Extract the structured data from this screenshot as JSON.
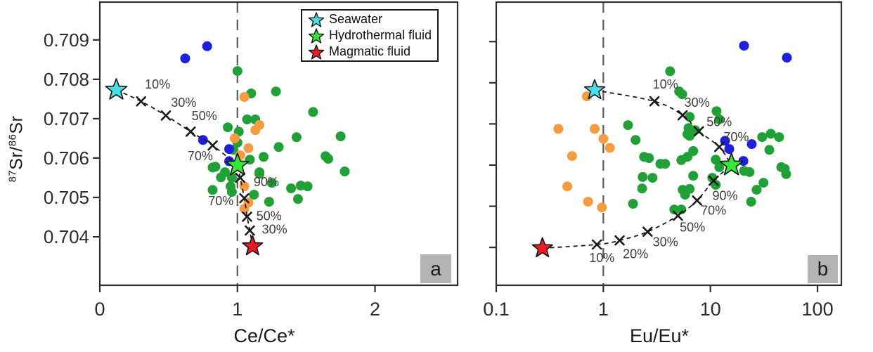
{
  "colors": {
    "green_dot": "#21a038",
    "orange_dot": "#f79b40",
    "blue_dot": "#1f1fe0",
    "seawater_star": "#45e0e6",
    "hydrothermal_star": "#35e835",
    "magmatic_star": "#ec1c24",
    "refline": "#5a5a5a",
    "curve": "#1a1a1a",
    "axis": "#2e2e2e",
    "tick_label": "#2b2b2b",
    "pct_label": "#3d3d3d",
    "panel_label_bg": "#b4b4b4"
  },
  "ylabel_parts": {
    "sup1": "87",
    "base1": "Sr/",
    "sup2": "86",
    "base2": "Sr"
  },
  "legend": {
    "items": [
      {
        "label": "Seawater",
        "color_key": "seawater_star"
      },
      {
        "label": "Hydrothermal fluid",
        "color_key": "hydrothermal_star"
      },
      {
        "label": "Magmatic fluid",
        "color_key": "magmatic_star"
      }
    ]
  },
  "chart_data": [
    {
      "type": "scatter",
      "panel_label": "a",
      "xlabel": "Ce/Ce*",
      "ylabel": "87Sr/86Sr",
      "xscale": "linear",
      "xlim": [
        0,
        2.6
      ],
      "ylim": [
        0.70277,
        0.70996
      ],
      "xticks": [
        {
          "v": 0,
          "label": "0"
        },
        {
          "v": 1,
          "label": "1"
        },
        {
          "v": 2,
          "label": "2"
        }
      ],
      "yticks": [
        {
          "v": 0.704,
          "label": "0.704"
        },
        {
          "v": 0.705,
          "label": "0.705"
        },
        {
          "v": 0.706,
          "label": "0.706"
        },
        {
          "v": 0.707,
          "label": "0.707"
        },
        {
          "v": 0.708,
          "label": "0.708"
        },
        {
          "v": 0.709,
          "label": "0.709"
        }
      ],
      "show_ytick_labels": true,
      "refline_x": 1,
      "series": [
        {
          "name": "green-dots",
          "color_key": "green_dot",
          "points": [
            [
              1.0,
              0.70821
            ],
            [
              1.1,
              0.70764
            ],
            [
              1.28,
              0.70769
            ],
            [
              1.55,
              0.70717
            ],
            [
              1.07,
              0.70698
            ],
            [
              1.13,
              0.70698
            ],
            [
              0.93,
              0.70678
            ],
            [
              1.01,
              0.70667
            ],
            [
              1.0,
              0.70639
            ],
            [
              0.97,
              0.70621
            ],
            [
              1.43,
              0.70653
            ],
            [
              1.75,
              0.70655
            ],
            [
              1.3,
              0.70628
            ],
            [
              1.19,
              0.70603
            ],
            [
              1.09,
              0.70596
            ],
            [
              1.64,
              0.70605
            ],
            [
              1.66,
              0.70598
            ],
            [
              0.84,
              0.70578
            ],
            [
              0.91,
              0.70564
            ],
            [
              1.16,
              0.70564
            ],
            [
              1.78,
              0.70566
            ],
            [
              0.82,
              0.70576
            ],
            [
              0.88,
              0.70551
            ],
            [
              0.96,
              0.7055
            ],
            [
              1.16,
              0.7056
            ],
            [
              0.82,
              0.70519
            ],
            [
              0.95,
              0.70528
            ],
            [
              0.96,
              0.70514
            ],
            [
              1.25,
              0.70537
            ],
            [
              1.39,
              0.70523
            ],
            [
              1.46,
              0.7053
            ],
            [
              1.51,
              0.70528
            ],
            [
              1.44,
              0.70496
            ],
            [
              1.23,
              0.70489
            ],
            [
              1.12,
              0.70507
            ]
          ]
        },
        {
          "name": "orange-dots",
          "color_key": "orange_dot",
          "points": [
            [
              1.05,
              0.70755
            ],
            [
              1.16,
              0.70684
            ],
            [
              1.13,
              0.70671
            ],
            [
              0.98,
              0.7065
            ],
            [
              1.08,
              0.70625
            ],
            [
              1.02,
              0.70607
            ],
            [
              1.05,
              0.70528
            ],
            [
              1.08,
              0.70487
            ],
            [
              1.05,
              0.70471
            ]
          ]
        },
        {
          "name": "blue-dots",
          "color_key": "blue_dot",
          "points": [
            [
              0.62,
              0.70853
            ],
            [
              0.78,
              0.70884
            ],
            [
              0.75,
              0.70646
            ],
            [
              0.94,
              0.70623
            ],
            [
              0.94,
              0.70592
            ]
          ]
        }
      ],
      "stars": [
        {
          "name": "Seawater",
          "color_key": "seawater_star",
          "x": 0.12,
          "y": 0.70773,
          "r": 16
        },
        {
          "name": "Hydrothermal fluid",
          "color_key": "hydrothermal_star",
          "x": 1.0,
          "y": 0.70582,
          "r": 17
        },
        {
          "name": "Magmatic fluid",
          "color_key": "magmatic_star",
          "x": 1.11,
          "y": 0.70376,
          "r": 15
        }
      ],
      "curves": [
        {
          "name": "seawater-hydrothermal-mixing",
          "points": [
            [
              0.12,
              0.70773
            ],
            [
              0.3,
              0.70744
            ],
            [
              0.48,
              0.70708
            ],
            [
              0.66,
              0.70667
            ],
            [
              0.82,
              0.70632
            ],
            [
              1.0,
              0.70582
            ]
          ],
          "markers": [
            [
              0.3,
              0.70744
            ],
            [
              0.48,
              0.70708
            ],
            [
              0.66,
              0.70667
            ],
            [
              0.82,
              0.70632
            ]
          ],
          "labels": [
            {
              "text": "10%",
              "x": 0.42,
              "y": 0.70787
            },
            {
              "text": "30%",
              "x": 0.61,
              "y": 0.70741
            },
            {
              "text": "50%",
              "x": 0.76,
              "y": 0.70707
            },
            {
              "text": "70%",
              "x": 0.73,
              "y": 0.70605
            }
          ]
        },
        {
          "name": "magmatic-hydrothermal-mixing",
          "points": [
            [
              1.11,
              0.70376
            ],
            [
              1.09,
              0.70416
            ],
            [
              1.07,
              0.70451
            ],
            [
              1.05,
              0.70498
            ],
            [
              1.02,
              0.7055
            ],
            [
              1.0,
              0.70582
            ]
          ],
          "markers": [
            [
              1.09,
              0.70416
            ],
            [
              1.07,
              0.70451
            ],
            [
              1.05,
              0.70498
            ],
            [
              1.02,
              0.7055
            ]
          ],
          "labels": [
            {
              "text": "30%",
              "x": 1.27,
              "y": 0.70419
            },
            {
              "text": "50%",
              "x": 1.23,
              "y": 0.70453
            },
            {
              "text": "70%",
              "x": 0.88,
              "y": 0.70491
            },
            {
              "text": "90%",
              "x": 1.21,
              "y": 0.70539
            }
          ]
        }
      ]
    },
    {
      "type": "scatter",
      "panel_label": "b",
      "xlabel": "Eu/Eu*",
      "ylabel": "87Sr/86Sr",
      "xscale": "log",
      "xlim": [
        0.1,
        167
      ],
      "ylim": [
        0.70308,
        0.70996
      ],
      "xticks": [
        {
          "v": 0.1,
          "label": "0.1"
        },
        {
          "v": 1,
          "label": "1"
        },
        {
          "v": 10,
          "label": "10"
        },
        {
          "v": 100,
          "label": "100"
        }
      ],
      "yticks": [
        {
          "v": 0.704,
          "label": "0.704"
        },
        {
          "v": 0.705,
          "label": "0.705"
        },
        {
          "v": 0.706,
          "label": "0.706"
        },
        {
          "v": 0.707,
          "label": "0.707"
        },
        {
          "v": 0.708,
          "label": "0.708"
        },
        {
          "v": 0.709,
          "label": "0.709"
        }
      ],
      "show_ytick_labels": false,
      "refline_x": 1,
      "series": [
        {
          "name": "green-dots",
          "color_key": "green_dot",
          "points": [
            [
              4.2,
              0.70828
            ],
            [
              5.1,
              0.70779
            ],
            [
              5.45,
              0.70772
            ],
            [
              6.4,
              0.70717
            ],
            [
              11.4,
              0.70731
            ],
            [
              12.1,
              0.70711
            ],
            [
              6.25,
              0.7069
            ],
            [
              6.1,
              0.70675
            ],
            [
              1.7,
              0.70697
            ],
            [
              2.0,
              0.70661
            ],
            [
              2.4,
              0.7062
            ],
            [
              2.67,
              0.70617
            ],
            [
              3.41,
              0.70603
            ],
            [
              3.78,
              0.70603
            ],
            [
              2.33,
              0.70571
            ],
            [
              2.88,
              0.70569
            ],
            [
              2.3,
              0.70543
            ],
            [
              5.5,
              0.7054
            ],
            [
              5.8,
              0.70528
            ],
            [
              1.89,
              0.70506
            ],
            [
              4.6,
              0.70492
            ],
            [
              5.35,
              0.70492
            ],
            [
              5.35,
              0.70612
            ],
            [
              6.1,
              0.7062
            ],
            [
              6.4,
              0.70671
            ],
            [
              7.2,
              0.70685
            ],
            [
              6.9,
              0.70634
            ],
            [
              11.2,
              0.70613
            ],
            [
              12.1,
              0.70595
            ],
            [
              6.9,
              0.70574
            ],
            [
              6.4,
              0.70542
            ],
            [
              10.4,
              0.70569
            ],
            [
              11.2,
              0.70552
            ],
            [
              20.6,
              0.70586
            ],
            [
              23.2,
              0.70583
            ],
            [
              30.4,
              0.70668
            ],
            [
              36.6,
              0.70676
            ],
            [
              43.8,
              0.70668
            ],
            [
              35.5,
              0.70637
            ],
            [
              45.9,
              0.70595
            ],
            [
              49.4,
              0.70591
            ],
            [
              31.3,
              0.70557
            ],
            [
              27.0,
              0.7054
            ],
            [
              24.0,
              0.70511
            ],
            [
              50.9,
              0.70578
            ]
          ]
        },
        {
          "name": "orange-dots",
          "color_key": "orange_dot",
          "points": [
            [
              0.7,
              0.70767
            ],
            [
              0.38,
              0.70688
            ],
            [
              0.83,
              0.70688
            ],
            [
              1.0,
              0.70664
            ],
            [
              1.15,
              0.70642
            ],
            [
              0.51,
              0.70622
            ],
            [
              0.46,
              0.70548
            ],
            [
              0.72,
              0.70511
            ],
            [
              0.97,
              0.70497
            ]
          ]
        },
        {
          "name": "blue-dots",
          "color_key": "blue_dot",
          "points": [
            [
              20.6,
              0.7089
            ],
            [
              51.8,
              0.70861
            ],
            [
              13.7,
              0.70659
            ],
            [
              24.3,
              0.70651
            ],
            [
              15.0,
              0.70639
            ],
            [
              20.3,
              0.7061
            ]
          ]
        }
      ],
      "stars": [
        {
          "name": "Seawater",
          "color_key": "seawater_star",
          "x": 0.83,
          "y": 0.70782,
          "r": 15
        },
        {
          "name": "Hydrothermal fluid",
          "color_key": "hydrothermal_star",
          "x": 15.7,
          "y": 0.706,
          "r": 17
        },
        {
          "name": "Magmatic fluid",
          "color_key": "magmatic_star",
          "x": 0.27,
          "y": 0.70398,
          "r": 15
        }
      ],
      "curves": [
        {
          "name": "seawater-hydrothermal-mixing",
          "points": [
            [
              0.83,
              0.70782
            ],
            [
              3.0,
              0.70755
            ],
            [
              5.5,
              0.70721
            ],
            [
              7.8,
              0.70682
            ],
            [
              12.1,
              0.70644
            ],
            [
              15.7,
              0.706
            ]
          ],
          "markers": [
            [
              3.0,
              0.70755
            ],
            [
              5.5,
              0.70721
            ],
            [
              7.8,
              0.70682
            ],
            [
              12.1,
              0.70644
            ]
          ],
          "labels": [
            {
              "text": "10%",
              "x": 3.8,
              "y": 0.70796
            },
            {
              "text": "30%",
              "x": 7.5,
              "y": 0.70752
            },
            {
              "text": "50%",
              "x": 12.1,
              "y": 0.70705
            },
            {
              "text": "70%",
              "x": 17.4,
              "y": 0.70668
            }
          ]
        },
        {
          "name": "magmatic-hydrothermal-mixing",
          "points": [
            [
              0.27,
              0.70398
            ],
            [
              0.87,
              0.70407
            ],
            [
              1.42,
              0.70417
            ],
            [
              2.59,
              0.70438
            ],
            [
              4.97,
              0.70477
            ],
            [
              7.5,
              0.70514
            ],
            [
              10.7,
              0.70562
            ],
            [
              15.7,
              0.706
            ]
          ],
          "markers": [
            [
              0.87,
              0.70407
            ],
            [
              1.42,
              0.70417
            ],
            [
              2.59,
              0.70438
            ],
            [
              4.97,
              0.70477
            ],
            [
              7.5,
              0.70514
            ],
            [
              10.7,
              0.70562
            ]
          ],
          "labels": [
            {
              "text": "10%",
              "x": 0.97,
              "y": 0.70375
            },
            {
              "text": "20%",
              "x": 2.0,
              "y": 0.70384
            },
            {
              "text": "30%",
              "x": 3.8,
              "y": 0.70413
            },
            {
              "text": "50%",
              "x": 6.8,
              "y": 0.70449
            },
            {
              "text": "70%",
              "x": 10.7,
              "y": 0.7049
            },
            {
              "text": "90%",
              "x": 13.7,
              "y": 0.70526
            }
          ]
        }
      ]
    }
  ]
}
